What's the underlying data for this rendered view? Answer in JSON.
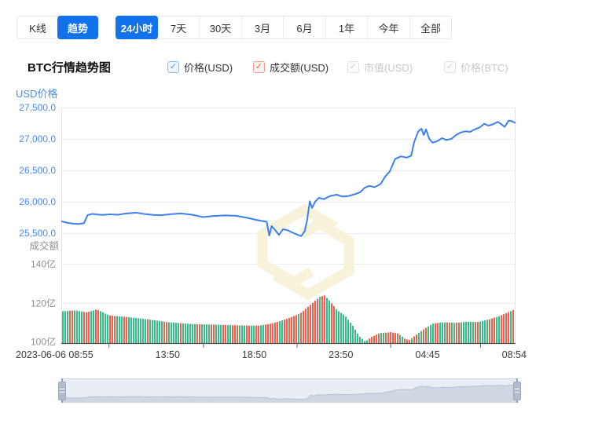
{
  "colors": {
    "accent_blue": "#1272ec",
    "line_blue": "#3e80f0",
    "axis_blue": "#4b8cf3",
    "bar_green": "#35bd8a",
    "bar_red": "#f0604d",
    "grey_text": "#8f8f8f",
    "watermark": "#f8f2da",
    "grid": "#ececec",
    "axis_dark": "#4d4d4d"
  },
  "toolbar": {
    "chart_type_tabs": [
      {
        "id": "kline",
        "label": "K线",
        "active": false
      },
      {
        "id": "trend",
        "label": "趋势",
        "active": true
      }
    ],
    "range_tabs": [
      {
        "id": "24h",
        "label": "24小时",
        "active": true
      },
      {
        "id": "7d",
        "label": "7天",
        "active": false
      },
      {
        "id": "30d",
        "label": "30天",
        "active": false
      },
      {
        "id": "3m",
        "label": "3月",
        "active": false
      },
      {
        "id": "6m",
        "label": "6月",
        "active": false
      },
      {
        "id": "1y",
        "label": "1年",
        "active": false
      },
      {
        "id": "ytd",
        "label": "今年",
        "active": false
      },
      {
        "id": "all",
        "label": "全部",
        "active": false
      }
    ]
  },
  "legend": {
    "title": "BTC行情趋势图",
    "items": [
      {
        "id": "price-usd",
        "label": "价格(USD)",
        "checked": true,
        "enabled": true,
        "color": "blue"
      },
      {
        "id": "volume-usd",
        "label": "成交额(USD)",
        "checked": true,
        "enabled": true,
        "color": "red"
      },
      {
        "id": "marketcap-usd",
        "label": "市值(USD)",
        "checked": true,
        "enabled": false,
        "color": "grey"
      },
      {
        "id": "price-btc",
        "label": "价格(BTC)",
        "checked": true,
        "enabled": false,
        "color": "grey"
      }
    ]
  },
  "chart_data": [
    {
      "type": "line",
      "name": "BTC price (USD)",
      "ylabel": "USD价格",
      "yticks": [
        "27,500.0",
        "27,000.0",
        "26,500.0",
        "26,000.0",
        "25,500.0"
      ],
      "ytick_values": [
        27500,
        27000,
        26500,
        26000,
        25500
      ],
      "ylim": [
        25500,
        27500
      ],
      "x_axis_labels": [
        "2023-06-06 08:55",
        "13:50",
        "18:50",
        "23:50",
        "04:45",
        "08:54"
      ],
      "grid": true,
      "points": [
        [
          0.0,
          25690
        ],
        [
          0.012,
          25668
        ],
        [
          0.024,
          25652
        ],
        [
          0.038,
          25648
        ],
        [
          0.05,
          25660
        ],
        [
          0.058,
          25788
        ],
        [
          0.068,
          25806
        ],
        [
          0.09,
          25790
        ],
        [
          0.107,
          25800
        ],
        [
          0.125,
          25794
        ],
        [
          0.142,
          25812
        ],
        [
          0.165,
          25826
        ],
        [
          0.185,
          25802
        ],
        [
          0.203,
          25790
        ],
        [
          0.22,
          25786
        ],
        [
          0.237,
          25800
        ],
        [
          0.263,
          25814
        ],
        [
          0.289,
          25792
        ],
        [
          0.312,
          25756
        ],
        [
          0.333,
          25772
        ],
        [
          0.359,
          25782
        ],
        [
          0.385,
          25776
        ],
        [
          0.411,
          25742
        ],
        [
          0.428,
          25712
        ],
        [
          0.442,
          25694
        ],
        [
          0.452,
          25682
        ],
        [
          0.458,
          25462
        ],
        [
          0.463,
          25612
        ],
        [
          0.47,
          25556
        ],
        [
          0.479,
          25472
        ],
        [
          0.488,
          25562
        ],
        [
          0.498,
          25548
        ],
        [
          0.508,
          25512
        ],
        [
          0.519,
          25478
        ],
        [
          0.528,
          25452
        ],
        [
          0.536,
          25532
        ],
        [
          0.541,
          25704
        ],
        [
          0.547,
          26008
        ],
        [
          0.552,
          25902
        ],
        [
          0.559,
          26002
        ],
        [
          0.567,
          26062
        ],
        [
          0.578,
          26042
        ],
        [
          0.592,
          26092
        ],
        [
          0.606,
          26112
        ],
        [
          0.619,
          26082
        ],
        [
          0.633,
          26092
        ],
        [
          0.647,
          26122
        ],
        [
          0.658,
          26152
        ],
        [
          0.668,
          26222
        ],
        [
          0.678,
          26252
        ],
        [
          0.69,
          26232
        ],
        [
          0.703,
          26282
        ],
        [
          0.713,
          26402
        ],
        [
          0.723,
          26482
        ],
        [
          0.735,
          26682
        ],
        [
          0.748,
          26722
        ],
        [
          0.76,
          26702
        ],
        [
          0.77,
          26732
        ],
        [
          0.777,
          26952
        ],
        [
          0.786,
          27122
        ],
        [
          0.793,
          27162
        ],
        [
          0.798,
          27062
        ],
        [
          0.803,
          27152
        ],
        [
          0.81,
          27002
        ],
        [
          0.817,
          26942
        ],
        [
          0.827,
          26962
        ],
        [
          0.838,
          27012
        ],
        [
          0.848,
          26982
        ],
        [
          0.859,
          27002
        ],
        [
          0.869,
          27062
        ],
        [
          0.879,
          27102
        ],
        [
          0.89,
          27122
        ],
        [
          0.9,
          27112
        ],
        [
          0.91,
          27152
        ],
        [
          0.921,
          27182
        ],
        [
          0.931,
          27242
        ],
        [
          0.94,
          27212
        ],
        [
          0.95,
          27232
        ],
        [
          0.961,
          27272
        ],
        [
          0.969,
          27232
        ],
        [
          0.976,
          27192
        ],
        [
          0.985,
          27292
        ],
        [
          0.992,
          27282
        ],
        [
          1.0,
          27252
        ]
      ]
    },
    {
      "type": "bar",
      "name": "BTC volume (USD)",
      "ylabel": "成交额",
      "yticks": [
        "140亿",
        "120亿",
        "100亿"
      ],
      "ytick_values": [
        140,
        120,
        100
      ],
      "ylim": [
        100,
        140
      ],
      "unit": "亿",
      "profile": [
        [
          0.0,
          116
        ],
        [
          0.029,
          116.5
        ],
        [
          0.055,
          115.5
        ],
        [
          0.078,
          117
        ],
        [
          0.104,
          114
        ],
        [
          0.142,
          113.2
        ],
        [
          0.189,
          112
        ],
        [
          0.237,
          110.5
        ],
        [
          0.289,
          109.6
        ],
        [
          0.341,
          109.3
        ],
        [
          0.393,
          108.9
        ],
        [
          0.436,
          108.8
        ],
        [
          0.467,
          110
        ],
        [
          0.497,
          112.2
        ],
        [
          0.526,
          114.8
        ],
        [
          0.548,
          119
        ],
        [
          0.571,
          123.5
        ],
        [
          0.581,
          124
        ],
        [
          0.595,
          120.5
        ],
        [
          0.609,
          116.5
        ],
        [
          0.626,
          113.8
        ],
        [
          0.644,
          108.5
        ],
        [
          0.657,
          103.5
        ],
        [
          0.671,
          100.8
        ],
        [
          0.685,
          103.2
        ],
        [
          0.702,
          105
        ],
        [
          0.727,
          105.5
        ],
        [
          0.744,
          104.8
        ],
        [
          0.758,
          102.2
        ],
        [
          0.768,
          101.5
        ],
        [
          0.782,
          104
        ],
        [
          0.803,
          107.5
        ],
        [
          0.82,
          109.8
        ],
        [
          0.843,
          110.5
        ],
        [
          0.869,
          110.2
        ],
        [
          0.894,
          110.8
        ],
        [
          0.92,
          110.6
        ],
        [
          0.941,
          111.8
        ],
        [
          0.962,
          113.2
        ],
        [
          0.981,
          115
        ],
        [
          1.0,
          117
        ]
      ],
      "color_runs": "3g2r4g3r2g2r4g3r3g2r3g5g1r6g2r5g1r6g2r2g2g2r3g2r2g3r3g2r2g2r2g2r4r2g6r1g8r1g2r2g2r5g9g5r2g6r2g3r1g2r2g2r3g2r3g2r2g2r2g4g2r4g3r2g4r1g1r"
    }
  ]
}
